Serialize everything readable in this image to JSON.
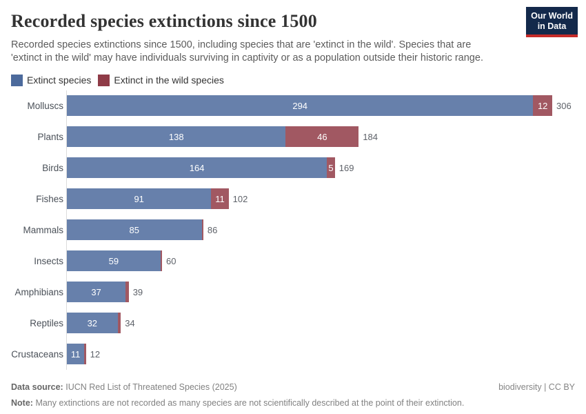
{
  "header": {
    "title": "Recorded species extinctions since 1500",
    "subtitle": "Recorded species extinctions since 1500, including species that are 'extinct in the wild'. Species that are 'extinct in the wild' may have individuals surviving in captivity or as a population outside their historic range.",
    "logo": {
      "line1": "Our World",
      "line2": "in Data",
      "bg_color": "#13294B",
      "stripe_color": "#C52B29"
    }
  },
  "legend": [
    {
      "label": "Extinct species",
      "color": "#4C6A9C"
    },
    {
      "label": "Extinct in the wild species",
      "color": "#8F3B47"
    }
  ],
  "chart_data": {
    "type": "bar",
    "orientation": "horizontal",
    "stacked": true,
    "grid": false,
    "categories": [
      "Molluscs",
      "Plants",
      "Birds",
      "Fishes",
      "Mammals",
      "Insects",
      "Amphibians",
      "Reptiles",
      "Crustaceans"
    ],
    "series": [
      {
        "name": "Extinct species",
        "legend_color": "#4C6A9C",
        "bar_color": "#6780AB",
        "values": [
          294,
          138,
          164,
          91,
          85,
          59,
          37,
          32,
          11
        ]
      },
      {
        "name": "Extinct in the wild species",
        "legend_color": "#8F3B47",
        "bar_color": "#A15862",
        "values": [
          12,
          46,
          5,
          11,
          1,
          1,
          2,
          2,
          1
        ]
      }
    ],
    "totals": [
      306,
      184,
      169,
      102,
      86,
      60,
      39,
      34,
      12
    ],
    "xmax": 306,
    "value_label_style": "white labels inside segments, gray totals outside bar end"
  },
  "footer": {
    "data_source_label": "Data source:",
    "data_source": "IUCN Red List of Threatened Species (2025)",
    "attribution": "biodiversity | CC BY",
    "note_label": "Note:",
    "note": "Many extinctions are not recorded as many species are not scientifically described at the point of their extinction."
  }
}
